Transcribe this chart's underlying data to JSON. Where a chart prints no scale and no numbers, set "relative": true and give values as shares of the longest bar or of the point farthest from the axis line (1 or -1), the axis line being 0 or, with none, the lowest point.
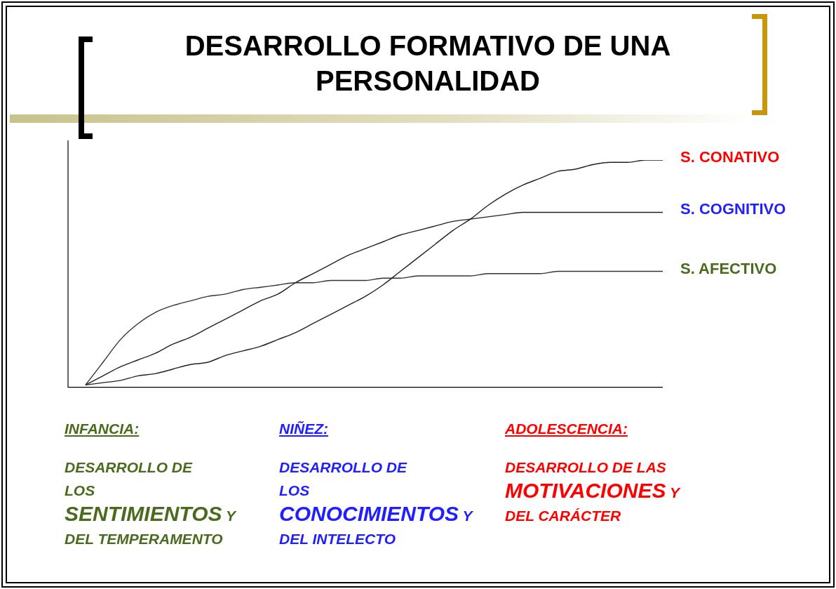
{
  "chart_data": {
    "type": "line",
    "title": "DESARROLLO FORMATIVO DE UNA PERSONALIDAD",
    "relative": true,
    "legend": false,
    "grid": false,
    "marker": "none",
    "line_style": "solid",
    "categories": [
      null,
      null,
      null,
      null,
      null,
      null,
      null,
      null,
      null,
      null,
      null,
      null,
      null,
      null,
      null,
      null,
      null,
      null,
      null,
      null,
      null,
      null,
      null,
      null,
      null,
      null,
      null,
      null,
      null,
      null,
      null,
      null,
      null,
      null,
      null
    ],
    "series": [
      {
        "name": "S. CONATIVO",
        "color": "#222222",
        "values": [
          null,
          0.01,
          0.02,
          0.03,
          0.05,
          0.06,
          0.08,
          0.1,
          0.11,
          0.14,
          0.16,
          0.18,
          0.21,
          0.24,
          0.28,
          0.32,
          0.36,
          0.4,
          0.45,
          0.51,
          0.57,
          0.63,
          0.69,
          0.74,
          0.8,
          0.85,
          0.89,
          0.92,
          0.95,
          0.96,
          0.98,
          0.99,
          0.99,
          1.0,
          1.0
        ]
      },
      {
        "name": "S. COGNITIVO",
        "color": "#222222",
        "values": [
          null,
          0.01,
          0.05,
          0.09,
          0.12,
          0.15,
          0.19,
          0.22,
          0.26,
          0.3,
          0.34,
          0.38,
          0.41,
          0.46,
          0.5,
          0.54,
          0.58,
          0.61,
          0.64,
          0.67,
          0.69,
          0.71,
          0.73,
          0.74,
          0.75,
          0.76,
          0.77,
          0.77,
          0.77,
          0.77,
          0.77,
          0.77,
          0.77,
          0.77,
          0.77
        ]
      },
      {
        "name": "S. AFECTIVO",
        "color": "#333333",
        "values": [
          null,
          0.01,
          0.11,
          0.21,
          0.28,
          0.33,
          0.36,
          0.38,
          0.4,
          0.41,
          0.43,
          0.44,
          0.45,
          0.46,
          0.46,
          0.47,
          0.47,
          0.47,
          0.48,
          0.48,
          0.49,
          0.49,
          0.49,
          0.49,
          0.5,
          0.5,
          0.5,
          0.5,
          0.51,
          0.51,
          0.51,
          0.51,
          0.51,
          0.51,
          0.51
        ]
      }
    ],
    "annotations": [
      "INFANCIA:",
      "DESARROLLO DE LOS",
      "SENTIMIENTOS",
      "Y DEL TEMPERAMENTO",
      "NIÑEZ:",
      "DESARROLLO DE LOS",
      "CONOCIMIENTOS",
      "Y DEL INTELECTO",
      "ADOLESCENCIA:",
      "DESARROLLO DE LAS",
      "MOTIVACIONES",
      "Y DEL CARÁCTER"
    ]
  }
}
